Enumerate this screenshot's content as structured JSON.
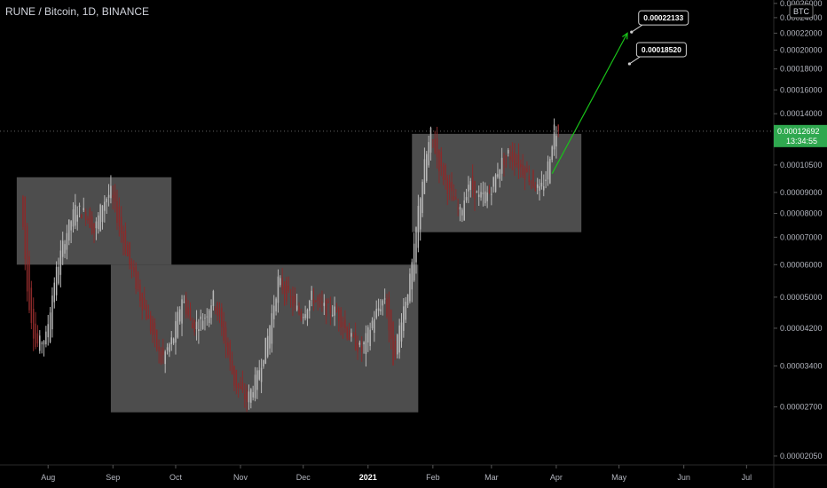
{
  "title": "RUNE / Bitcoin, 1D, BINANCE",
  "currency_badge": "BTC",
  "current_price": "0.00012692",
  "countdown": "13:34:55",
  "colors": {
    "background": "#000000",
    "up": "#b8b8b8",
    "down": "#8b2a2a",
    "zone": "#5a5a5a",
    "target_arrow": "#19c319",
    "price_tag": "#2fa84f"
  },
  "chart_data": {
    "type": "candlestick",
    "title": "RUNE / Bitcoin, 1D, BINANCE",
    "y_scale": "log",
    "ylim": [
      1.95e-05,
      0.000265
    ],
    "y_ticks": [
      {
        "value": 0.00026,
        "label": "0.00026000"
      },
      {
        "value": 0.00024,
        "label": "0.00024000"
      },
      {
        "value": 0.00022,
        "label": "0.00022000"
      },
      {
        "value": 0.0002,
        "label": "0.00020000"
      },
      {
        "value": 0.00018,
        "label": "0.00018000"
      },
      {
        "value": 0.00016,
        "label": "0.00016000"
      },
      {
        "value": 0.00014,
        "label": "0.00014000"
      },
      {
        "value": 0.000105,
        "label": "0.00010500"
      },
      {
        "value": 9e-05,
        "label": "0.00009000"
      },
      {
        "value": 8e-05,
        "label": "0.00008000"
      },
      {
        "value": 7e-05,
        "label": "0.00007000"
      },
      {
        "value": 6e-05,
        "label": "0.00006000"
      },
      {
        "value": 5e-05,
        "label": "0.00005000"
      },
      {
        "value": 4.2e-05,
        "label": "0.00004200"
      },
      {
        "value": 3.4e-05,
        "label": "0.00003400"
      },
      {
        "value": 2.7e-05,
        "label": "0.00002700"
      },
      {
        "value": 2.05e-05,
        "label": "0.00002050"
      }
    ],
    "x_range": [
      "2020-07-09",
      "2021-07-14"
    ],
    "x_ticks": [
      {
        "date": "2020-08-01",
        "label": "Aug",
        "bold": false
      },
      {
        "date": "2020-09-01",
        "label": "Sep",
        "bold": false
      },
      {
        "date": "2020-10-01",
        "label": "Oct",
        "bold": false
      },
      {
        "date": "2020-11-01",
        "label": "Nov",
        "bold": false
      },
      {
        "date": "2020-12-01",
        "label": "Dec",
        "bold": false
      },
      {
        "date": "2021-01-01",
        "label": "2021",
        "bold": true
      },
      {
        "date": "2021-02-01",
        "label": "Feb",
        "bold": false
      },
      {
        "date": "2021-03-01",
        "label": "Mar",
        "bold": false
      },
      {
        "date": "2021-04-01",
        "label": "Apr",
        "bold": false
      },
      {
        "date": "2021-05-01",
        "label": "May",
        "bold": false
      },
      {
        "date": "2021-06-01",
        "label": "Jun",
        "bold": false
      },
      {
        "date": "2021-07-01",
        "label": "Jul",
        "bold": false
      }
    ],
    "price_path": [
      [
        "2020-07-20",
        8.8e-05
      ],
      [
        "2020-07-23",
        5.2e-05
      ],
      [
        "2020-07-27",
        3.8e-05
      ],
      [
        "2020-08-01",
        4e-05
      ],
      [
        "2020-08-05",
        5.5e-05
      ],
      [
        "2020-08-10",
        7e-05
      ],
      [
        "2020-08-15",
        8.2e-05
      ],
      [
        "2020-08-20",
        8e-05
      ],
      [
        "2020-08-24",
        7.2e-05
      ],
      [
        "2020-08-28",
        8.5e-05
      ],
      [
        "2020-09-01",
        9e-05
      ],
      [
        "2020-09-05",
        7.5e-05
      ],
      [
        "2020-09-10",
        6e-05
      ],
      [
        "2020-09-15",
        5e-05
      ],
      [
        "2020-09-20",
        4.2e-05
      ],
      [
        "2020-09-25",
        3.5e-05
      ],
      [
        "2020-10-01",
        4e-05
      ],
      [
        "2020-10-05",
        5e-05
      ],
      [
        "2020-10-10",
        4.2e-05
      ],
      [
        "2020-10-16",
        4.5e-05
      ],
      [
        "2020-10-20",
        5e-05
      ],
      [
        "2020-10-25",
        4e-05
      ],
      [
        "2020-10-30",
        3.1e-05
      ],
      [
        "2020-11-05",
        2.8e-05
      ],
      [
        "2020-11-10",
        3.2e-05
      ],
      [
        "2020-11-15",
        4e-05
      ],
      [
        "2020-11-20",
        5.5e-05
      ],
      [
        "2020-11-25",
        5e-05
      ],
      [
        "2020-12-01",
        4.5e-05
      ],
      [
        "2020-12-06",
        5e-05
      ],
      [
        "2020-12-12",
        4.7e-05
      ],
      [
        "2020-12-18",
        4.6e-05
      ],
      [
        "2020-12-24",
        4e-05
      ],
      [
        "2020-12-30",
        3.7e-05
      ],
      [
        "2021-01-05",
        4.5e-05
      ],
      [
        "2021-01-10",
        5e-05
      ],
      [
        "2021-01-14",
        3.5e-05
      ],
      [
        "2021-01-18",
        4.5e-05
      ],
      [
        "2021-01-22",
        5.5e-05
      ],
      [
        "2021-01-24",
        6.5e-05
      ],
      [
        "2021-01-26",
        8.2e-05
      ],
      [
        "2021-01-29",
        0.000105
      ],
      [
        "2021-02-01",
        0.000125
      ],
      [
        "2021-02-05",
        0.000105
      ],
      [
        "2021-02-10",
        9e-05
      ],
      [
        "2021-02-15",
        8e-05
      ],
      [
        "2021-02-19",
        9.5e-05
      ],
      [
        "2021-02-24",
        8.7e-05
      ],
      [
        "2021-03-01",
        9e-05
      ],
      [
        "2021-03-06",
        0.000105
      ],
      [
        "2021-03-10",
        0.000112
      ],
      [
        "2021-03-15",
        0.000105
      ],
      [
        "2021-03-20",
        9.8e-05
      ],
      [
        "2021-03-25",
        9e-05
      ],
      [
        "2021-03-28",
        9.8e-05
      ],
      [
        "2021-03-31",
        0.00012
      ],
      [
        "2021-04-01",
        0.00013
      ],
      [
        "2021-04-02",
        0.00012692
      ]
    ],
    "zones": [
      {
        "start": "2020-07-17",
        "end": "2020-09-29",
        "top": 9.8e-05,
        "bottom": 6e-05
      },
      {
        "start": "2020-08-31",
        "end": "2021-01-25",
        "top": 6e-05,
        "bottom": 2.62e-05
      },
      {
        "start": "2021-01-22",
        "end": "2021-04-13",
        "top": 0.000125,
        "bottom": 7.2e-05
      }
    ],
    "target_path": [
      [
        "2021-03-30",
        0.0001
      ],
      [
        "2021-05-05",
        0.00022
      ]
    ],
    "annotations": [
      {
        "label": "0.00022133",
        "date": "2021-05-07",
        "value": 0.00022133
      },
      {
        "label": "0.00018520",
        "date": "2021-05-06",
        "value": 0.0001852
      }
    ],
    "current_price": 0.00012692
  }
}
